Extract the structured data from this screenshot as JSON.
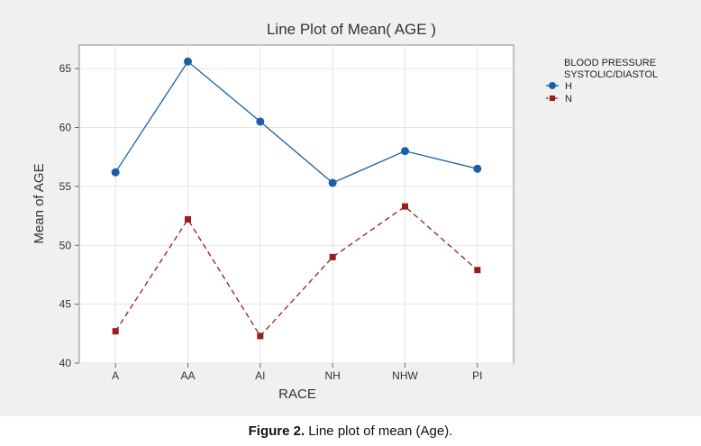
{
  "chart_data": {
    "type": "line",
    "title": "Line Plot of Mean( AGE )",
    "xlabel": "RACE",
    "ylabel": "Mean of AGE",
    "categories": [
      "A",
      "AA",
      "AI",
      "NH",
      "NHW",
      "PI"
    ],
    "ylim": [
      40,
      67
    ],
    "yticks": [
      40,
      45,
      50,
      55,
      60,
      65
    ],
    "grid": true,
    "legend_title_line1": "BLOOD PRESSURE",
    "legend_title_line2": "SYSTOLIC/DIASTOL",
    "legend_position": "right",
    "series": [
      {
        "name": "H",
        "values": [
          56.2,
          65.6,
          60.5,
          55.3,
          58.0,
          56.5
        ],
        "color": "#1a5ea8",
        "marker": "circle",
        "line": "solid"
      },
      {
        "name": "N",
        "values": [
          42.7,
          52.2,
          42.3,
          49.0,
          53.3,
          47.9
        ],
        "color": "#9b1c1c",
        "marker": "square",
        "line": "dashed"
      }
    ]
  },
  "caption": {
    "label": "Figure 2.",
    "text": " Line plot of mean (Age)."
  }
}
